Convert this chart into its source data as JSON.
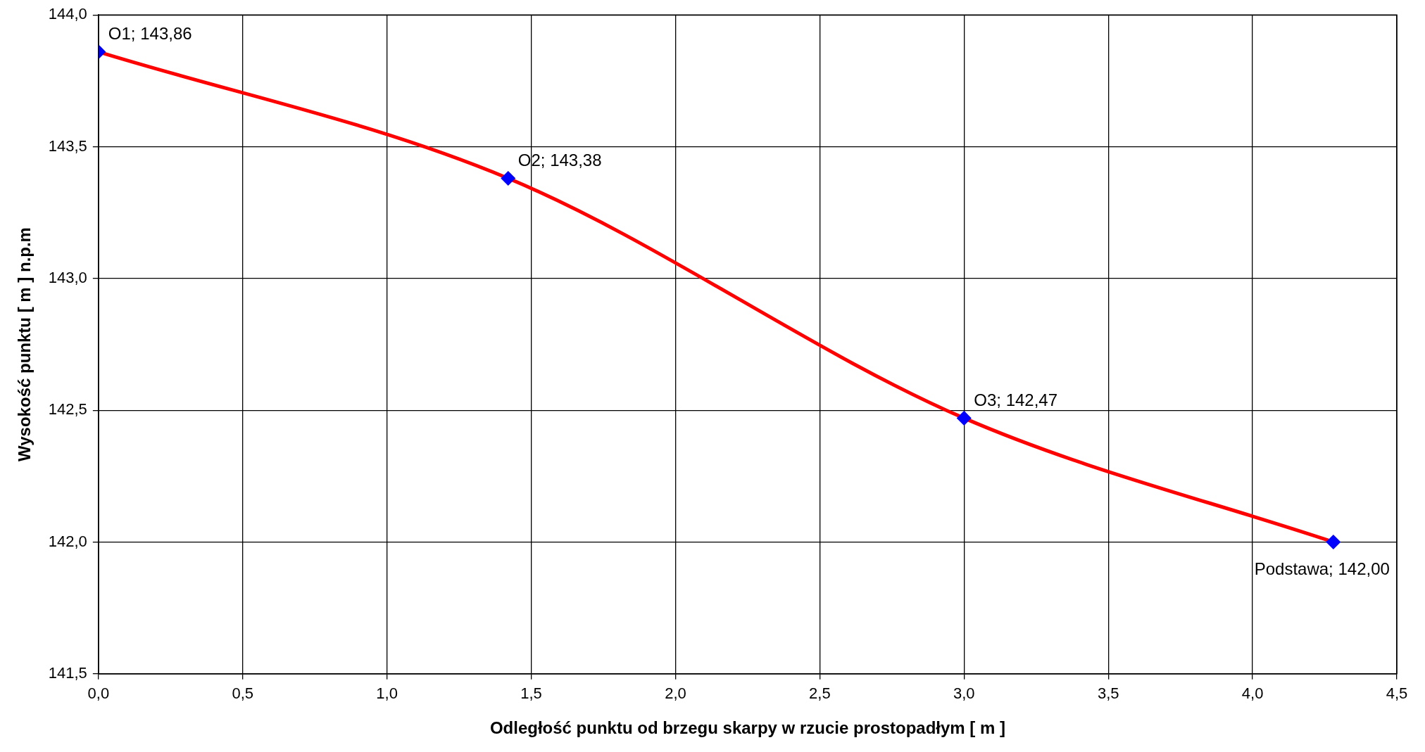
{
  "chart_data": {
    "type": "line",
    "xlabel": "Odległość punktu od brzegu skarpy w rzucie prostopadłym [ m ]",
    "ylabel": "Wysokość punktu [ m ] n.p.m",
    "x": [
      0,
      1.42,
      3.0,
      4.28
    ],
    "series": [
      {
        "color": "#ff0000",
        "colors": [
          "#0000ff",
          "#0000ff",
          "#0000ff",
          "#0000ff"
        ],
        "values": [
          143.86,
          143.38,
          142.47,
          142.0
        ]
      }
    ],
    "xlim": [
      0,
      4.5
    ],
    "xticks": [
      {
        "value": 0,
        "label": "0,0"
      },
      {
        "value": 0.5,
        "label": "0,5"
      },
      {
        "value": 1,
        "label": "1,0"
      },
      {
        "value": 1.5,
        "label": "1,5"
      },
      {
        "value": 2,
        "label": "2,0"
      },
      {
        "value": 2.5,
        "label": "2,5"
      },
      {
        "value": 3,
        "label": "3,0"
      },
      {
        "value": 3.5,
        "label": "3,5"
      },
      {
        "value": 4,
        "label": "4,0"
      },
      {
        "value": 4.5,
        "label": "4,5"
      }
    ],
    "ylim": [
      141.5,
      144
    ],
    "yticks": [
      {
        "value": 141.5,
        "label": "141,5"
      },
      {
        "value": 142,
        "label": "142,0"
      },
      {
        "value": 142.5,
        "label": "142,5"
      },
      {
        "value": 143,
        "label": "143,0"
      },
      {
        "value": 143.5,
        "label": "143,5"
      },
      {
        "value": 144,
        "label": "144,0"
      }
    ],
    "grid": true,
    "legend": false,
    "marker": "diamond",
    "line_style": "solid",
    "annotations": [
      {
        "text": "O1; 143,86",
        "x": 0,
        "y": 143.86
      },
      {
        "text": "O2; 143,38",
        "x": 1.42,
        "y": 143.38
      },
      {
        "text": "O3; 142,47",
        "x": 3.0,
        "y": 142.47
      },
      {
        "text": "Podstawa; 142,00",
        "x": 4.28,
        "y": 142.0
      }
    ]
  }
}
